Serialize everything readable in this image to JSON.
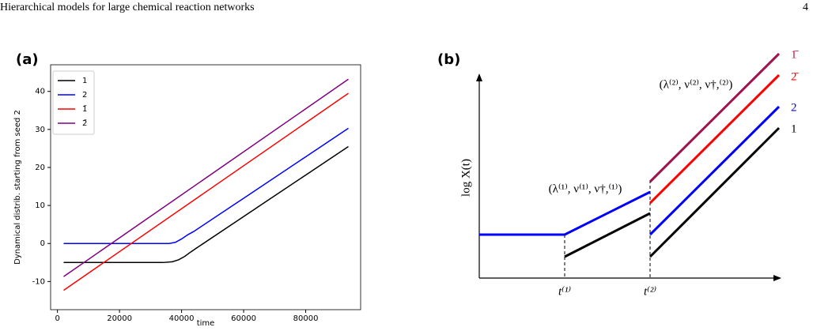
{
  "header": {
    "title": "Hierarchical models for large chemical reaction networks",
    "page": "4"
  },
  "chart_data": {
    "type": "line",
    "panel_label": "(a)",
    "x_label": "time",
    "y_label": "Dynamical distrib.  starting from seed 2",
    "xlim": [
      -2200,
      97700
    ],
    "ylim": [
      -17.4,
      47
    ],
    "xticks": [
      0,
      20000,
      40000,
      60000,
      80000
    ],
    "yticks": [
      -10,
      0,
      10,
      20,
      30,
      40
    ],
    "legend": "upper left",
    "series": [
      {
        "name": "1",
        "color": "#000000",
        "x": [
          2000,
          20000,
          34000,
          37000,
          39000,
          41000,
          43000,
          45000,
          60000,
          80000,
          93750
        ],
        "values": [
          -5,
          -5,
          -5,
          -4.8,
          -4.3,
          -3.4,
          -2.2,
          -1.1,
          7.1,
          18,
          25.5
        ]
      },
      {
        "name": "2",
        "color": "#0000ff",
        "x": [
          2000,
          20000,
          36000,
          38000,
          40000,
          42000,
          44000,
          60000,
          80000,
          93750
        ],
        "values": [
          0,
          0,
          0,
          0.3,
          1.2,
          2.3,
          3.2,
          11.9,
          22.8,
          30.3
        ]
      },
      {
        "name": "1̄",
        "color": "#ff0000",
        "x": [
          2000,
          93750
        ],
        "values": [
          -12.3,
          39.5
        ]
      },
      {
        "name": "2̄",
        "color": "#800080",
        "x": [
          2000,
          93750
        ],
        "values": [
          -8.7,
          43.2
        ]
      }
    ]
  },
  "diagram": {
    "panel_label": "(b)",
    "y_label": "log X(t)",
    "t1": "t⁽¹⁾",
    "t2": "t⁽²⁾",
    "annotation1": "(λ⁽¹⁾, ν⁽¹⁾, ν†,⁽¹⁾)",
    "annotation2": "(λ⁽²⁾, ν⁽²⁾, ν†,⁽²⁾)",
    "labels": [
      "1̄",
      "2̄",
      "2",
      "1"
    ]
  }
}
